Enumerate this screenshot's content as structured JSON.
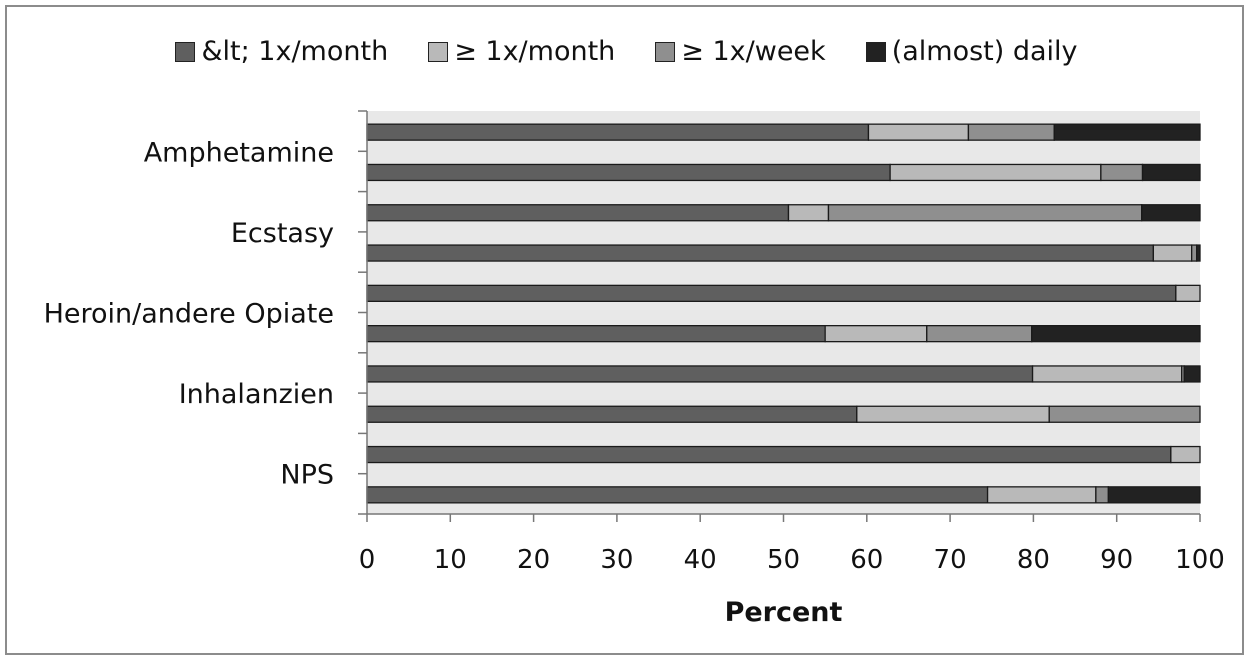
{
  "chart_data": {
    "type": "bar",
    "orientation": "horizontal",
    "stacked": true,
    "title": "",
    "xlabel": "Percent",
    "ylabel": "",
    "xlim": [
      0,
      100
    ],
    "x_ticks": [
      "0",
      "10",
      "20",
      "30",
      "40",
      "50",
      "60",
      "70",
      "80",
      "90",
      "100"
    ],
    "category_labels": [
      "Amphetamine",
      "Ecstasy",
      "Heroin/andere Opiate",
      "Inhalanzien",
      "NPS"
    ],
    "rows": [
      {
        "group": "Amphetamine",
        "values": [
          60.2,
          12.0,
          10.3,
          17.5
        ]
      },
      {
        "group": "Amphetamine",
        "values": [
          62.8,
          25.3,
          5.0,
          6.9
        ]
      },
      {
        "group": "Ecstasy",
        "values": [
          50.6,
          4.8,
          37.6,
          7.0
        ]
      },
      {
        "group": "Ecstasy",
        "values": [
          94.4,
          4.6,
          0.6,
          0.4
        ]
      },
      {
        "group": "Heroin/andere Opiate",
        "values": [
          97.1,
          2.9,
          0,
          0
        ]
      },
      {
        "group": "Heroin/andere Opiate",
        "values": [
          55.0,
          12.2,
          12.6,
          20.2
        ]
      },
      {
        "group": "Inhalanzien",
        "values": [
          79.9,
          17.9,
          0.3,
          1.9
        ]
      },
      {
        "group": "Inhalanzien",
        "values": [
          58.8,
          23.1,
          18.1,
          0
        ]
      },
      {
        "group": "NPS",
        "values": [
          96.5,
          3.5,
          0,
          0
        ]
      },
      {
        "group": "NPS",
        "values": [
          74.5,
          13.0,
          1.5,
          11.0
        ]
      }
    ],
    "series": [
      {
        "name": "&lt; 1x/month",
        "color": "#5f5f5f"
      },
      {
        "name": "≥ 1x/month",
        "color": "#b9b9b9"
      },
      {
        "name": "≥ 1x/week",
        "color": "#8f8f8f"
      },
      {
        "name": "(almost) daily",
        "color": "#222222"
      }
    ],
    "plot_background": "#e8e8e8",
    "grid": false,
    "legend_position": "top"
  }
}
